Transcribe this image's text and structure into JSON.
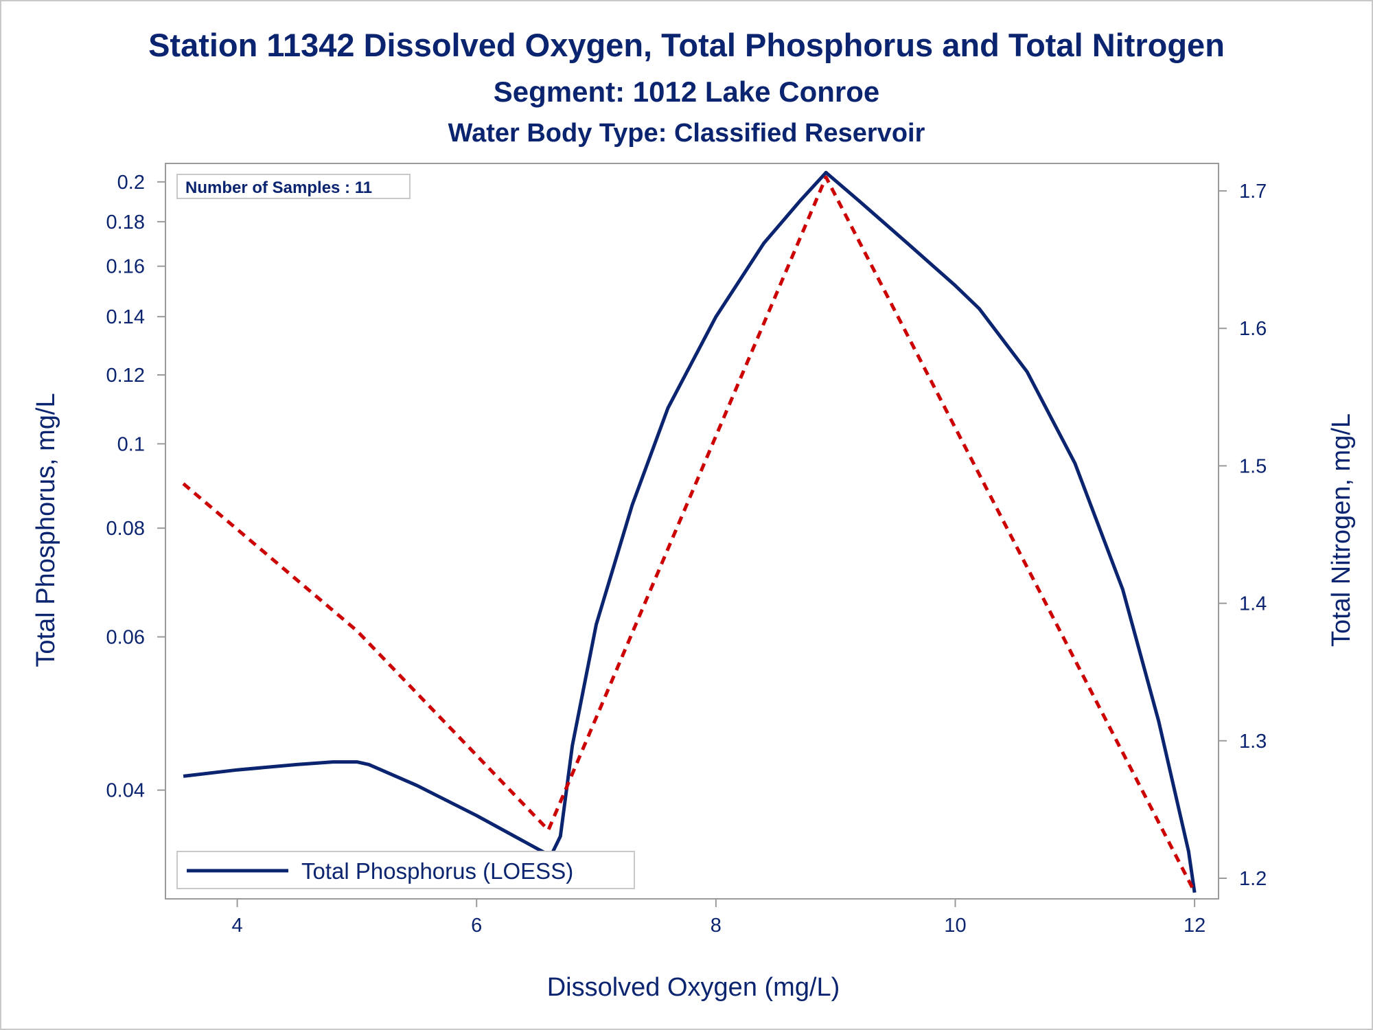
{
  "titles": {
    "line1": "Station 11342  Dissolved Oxygen, Total Phosphorus and Total Nitrogen",
    "line2": "Segment: 1012  Lake Conroe",
    "line3": "Water Body Type: Classified Reservoir"
  },
  "inset_label": "Number of Samples : 11",
  "legend": {
    "label": "Total Phosphorus (LOESS)"
  },
  "colors": {
    "text": "#0b2470",
    "phosphorus": "#0b2470",
    "nitrogen": "#cc0000",
    "axis": "#9a9a9a"
  },
  "chart_data": {
    "type": "line",
    "xlabel": "Dissolved Oxygen (mg/L)",
    "ylabel": "Total Phosphorus, mg/L",
    "y2label": "Total Nitrogen, mg/L",
    "xlim": [
      3.4,
      12.2
    ],
    "ylim": [
      0.03,
      0.21
    ],
    "y_scale": "log",
    "y2lim": [
      1.185,
      1.72
    ],
    "x_ticks": [
      4,
      6,
      8,
      10,
      12
    ],
    "y_ticks": [
      0.04,
      0.06,
      0.08,
      0.1,
      0.12,
      0.14,
      0.16,
      0.18,
      0.2
    ],
    "y2_ticks": [
      1.2,
      1.3,
      1.4,
      1.5,
      1.6,
      1.7
    ],
    "grid": false,
    "legend_position": "bottom-left",
    "series": [
      {
        "name": "Total Phosphorus (LOESS)",
        "axis": "left",
        "style": "solid",
        "x": [
          3.55,
          4.0,
          4.5,
          4.8,
          5.0,
          5.1,
          5.5,
          6.0,
          6.5,
          6.62,
          6.7,
          6.8,
          7.0,
          7.3,
          7.6,
          8.0,
          8.4,
          8.7,
          8.92,
          9.2,
          9.6,
          10.0,
          10.2,
          10.6,
          11.0,
          11.4,
          11.7,
          11.95,
          12.0
        ],
        "y": [
          0.0415,
          0.0422,
          0.0428,
          0.0431,
          0.0431,
          0.0428,
          0.0405,
          0.0374,
          0.0343,
          0.0336,
          0.0354,
          0.045,
          0.062,
          0.085,
          0.11,
          0.14,
          0.17,
          0.19,
          0.205,
          0.19,
          0.17,
          0.152,
          0.143,
          0.121,
          0.095,
          0.068,
          0.048,
          0.034,
          0.0305
        ]
      },
      {
        "name": "",
        "axis": "right",
        "style": "dashed",
        "x": [
          3.55,
          5.0,
          6.6,
          8.92,
          12.0
        ],
        "y": [
          1.487,
          1.38,
          1.235,
          1.71,
          1.19
        ]
      }
    ]
  }
}
